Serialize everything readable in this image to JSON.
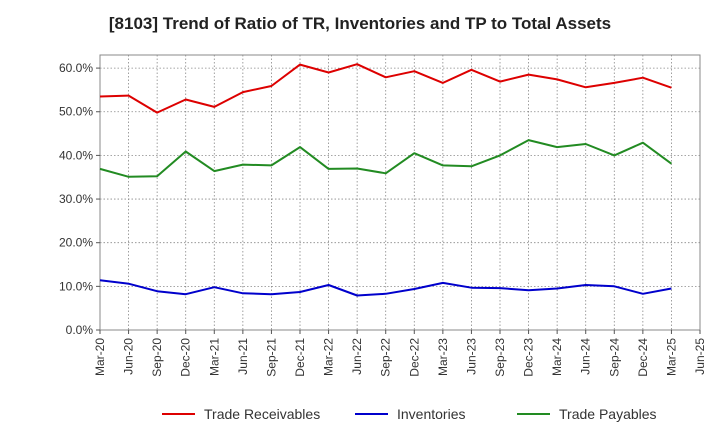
{
  "chart_data": {
    "type": "line",
    "title": "[8103]  Trend of Ratio of TR, Inventories and TP to Total Assets",
    "xlabel": "",
    "ylabel": "",
    "ylim": [
      0,
      60
    ],
    "y_ticks": [
      "0.0%",
      "10.0%",
      "20.0%",
      "30.0%",
      "40.0%",
      "50.0%",
      "60.0%"
    ],
    "x_ticks": [
      "Mar-20",
      "Jun-20",
      "Sep-20",
      "Dec-20",
      "Mar-21",
      "Jun-21",
      "Sep-21",
      "Dec-21",
      "Mar-22",
      "Jun-22",
      "Sep-22",
      "Dec-22",
      "Mar-23",
      "Jun-23",
      "Sep-23",
      "Dec-23",
      "Mar-24",
      "Jun-24",
      "Sep-24",
      "Dec-24",
      "Mar-25",
      "Jun-25"
    ],
    "x": [
      "Mar-20",
      "Jun-20",
      "Sep-20",
      "Dec-20",
      "Mar-21",
      "Jun-21",
      "Sep-21",
      "Dec-21",
      "Mar-22",
      "Jun-22",
      "Sep-22",
      "Dec-22",
      "Mar-23",
      "Jun-23",
      "Sep-23",
      "Dec-23",
      "Mar-24",
      "Jun-24",
      "Sep-24",
      "Dec-24",
      "Mar-25"
    ],
    "grid": true,
    "legend_position": "bottom",
    "series": [
      {
        "name": "Trade Receivables",
        "color": "#dd0000",
        "values": [
          53.5,
          53.7,
          49.8,
          52.8,
          51.1,
          54.5,
          55.9,
          60.8,
          59.0,
          60.9,
          57.9,
          59.3,
          56.6,
          59.6,
          56.9,
          58.5,
          57.4,
          55.6,
          56.6,
          57.8,
          55.5
        ]
      },
      {
        "name": "Inventories",
        "color": "#0000cc",
        "values": [
          11.4,
          10.6,
          8.9,
          8.2,
          9.8,
          8.4,
          8.2,
          8.7,
          10.3,
          7.9,
          8.3,
          9.4,
          10.8,
          9.7,
          9.6,
          9.1,
          9.5,
          10.3,
          10.0,
          8.3,
          9.5
        ]
      },
      {
        "name": "Trade Payables",
        "color": "#228b22",
        "values": [
          36.9,
          35.1,
          35.2,
          40.9,
          36.4,
          37.9,
          37.7,
          41.9,
          36.9,
          37.0,
          35.9,
          40.5,
          37.7,
          37.5,
          40.0,
          43.5,
          41.9,
          42.6,
          40.0,
          42.9,
          38.1
        ]
      }
    ]
  }
}
